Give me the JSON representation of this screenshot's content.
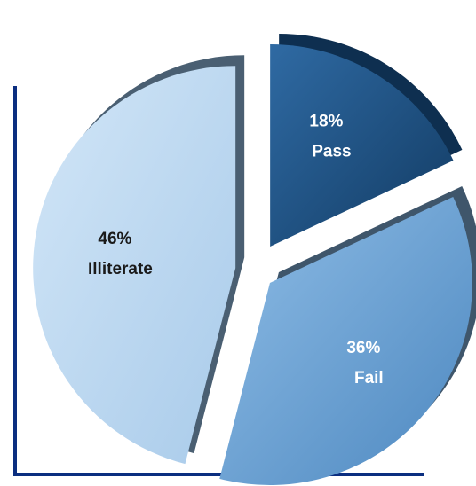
{
  "chart_data": {
    "type": "pie",
    "categories": [
      "Pass",
      "Fail",
      "Illiterate"
    ],
    "values": [
      18,
      36,
      46
    ],
    "value_labels": [
      "18%",
      "36%",
      "46%"
    ],
    "exploded": true,
    "style": "3d",
    "colors": {
      "Pass": "#1d4f80",
      "Fail": "#6ea5d6",
      "Illiterate": "#bcd8f0"
    },
    "label_colors": {
      "Pass": "#ffffff",
      "Fail": "#ffffff",
      "Illiterate": "#1a1a1a"
    }
  }
}
